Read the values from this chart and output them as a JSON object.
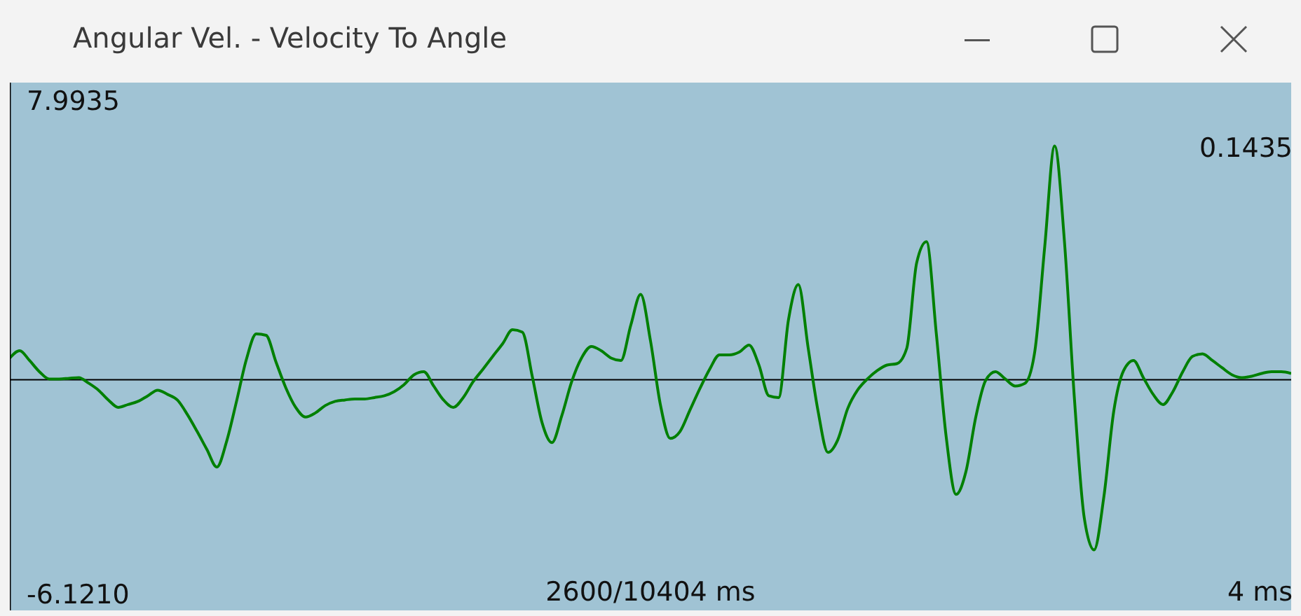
{
  "chart_data": {
    "type": "line",
    "title": "Angular Vel. - Velocity To Angle",
    "categories": [
      null,
      null,
      null,
      null,
      null,
      null,
      null,
      null,
      null,
      null,
      null,
      null,
      null,
      null,
      null,
      null,
      null,
      null,
      null,
      null,
      null,
      null,
      null,
      null,
      null,
      null,
      null,
      null,
      null,
      null,
      null,
      null,
      null,
      null,
      null,
      null,
      null,
      null,
      null,
      null,
      null,
      null,
      null,
      null,
      null,
      null,
      null,
      null,
      null,
      null,
      null,
      null,
      null,
      null,
      null,
      null,
      null,
      null,
      null,
      null,
      null,
      null,
      null,
      null,
      null,
      null,
      null,
      null,
      null,
      null,
      null,
      null,
      null,
      null,
      null,
      null,
      null,
      null,
      null,
      null,
      null,
      null,
      null,
      null,
      null,
      null,
      null,
      null,
      null,
      null,
      null,
      null,
      null,
      null,
      null,
      null,
      null,
      null,
      null,
      null,
      null,
      null,
      null,
      null,
      null,
      null,
      null,
      null,
      null,
      null,
      null,
      null,
      null,
      null,
      null,
      null,
      null,
      null,
      null,
      null,
      null,
      null,
      null,
      null,
      null,
      null,
      null,
      null,
      null,
      null,
      null
    ],
    "series": [
      {
        "color": "#008000",
        "values": [
          0.62,
          0.83,
          0.55,
          0.23,
          0.02,
          0.02,
          0.04,
          0.06,
          -0.1,
          -0.3,
          -0.58,
          -0.79,
          -0.71,
          -0.62,
          -0.46,
          -0.3,
          -0.42,
          -0.58,
          -0.99,
          -1.48,
          -2.0,
          -2.5,
          -1.76,
          -0.62,
          0.58,
          1.31,
          1.27,
          0.51,
          -0.23,
          -0.79,
          -1.07,
          -0.95,
          -0.74,
          -0.62,
          -0.58,
          -0.55,
          -0.55,
          -0.51,
          -0.46,
          -0.34,
          -0.14,
          0.14,
          0.23,
          -0.18,
          -0.58,
          -0.79,
          -0.51,
          -0.06,
          0.3,
          0.67,
          1.03,
          1.43,
          1.36,
          0.1,
          -1.23,
          -1.8,
          -1.03,
          -0.06,
          0.62,
          0.95,
          0.83,
          0.62,
          0.55,
          1.56,
          2.44,
          1.11,
          -0.71,
          -1.68,
          -1.48,
          -0.87,
          -0.26,
          0.3,
          0.71,
          0.71,
          0.79,
          0.99,
          0.42,
          -0.46,
          -0.51,
          1.72,
          2.72,
          0.9,
          -0.9,
          -2.08,
          -1.72,
          -0.83,
          -0.3,
          0.02,
          0.26,
          0.42,
          0.46,
          0.9,
          3.34,
          3.95,
          1.31,
          -1.64,
          -3.28,
          -2.63,
          -1.07,
          -0.02,
          0.23,
          0.02,
          -0.18,
          -0.1,
          0.83,
          3.82,
          6.69,
          3.94,
          -0.51,
          -3.94,
          -4.87,
          -3.34,
          -0.9,
          0.26,
          0.55,
          0.06,
          -0.42,
          -0.71,
          -0.34,
          0.23,
          0.67,
          0.74,
          0.55,
          0.34,
          0.14,
          0.06,
          0.1,
          0.18,
          0.23,
          0.23,
          0.18
        ]
      }
    ],
    "ylim": [
      -6.6,
      8.5
    ],
    "yticks": [
      {
        "value": 7.9935,
        "label": "7.9935"
      },
      {
        "value": -6.121,
        "label": "-6.1210"
      }
    ],
    "tick_labels": "y",
    "ref_lines": [
      {
        "axis": "y",
        "value": 0,
        "color": "#000000"
      }
    ],
    "annotations": [
      "0.1435",
      "2600/10404 ms",
      "4 ms"
    ]
  }
}
